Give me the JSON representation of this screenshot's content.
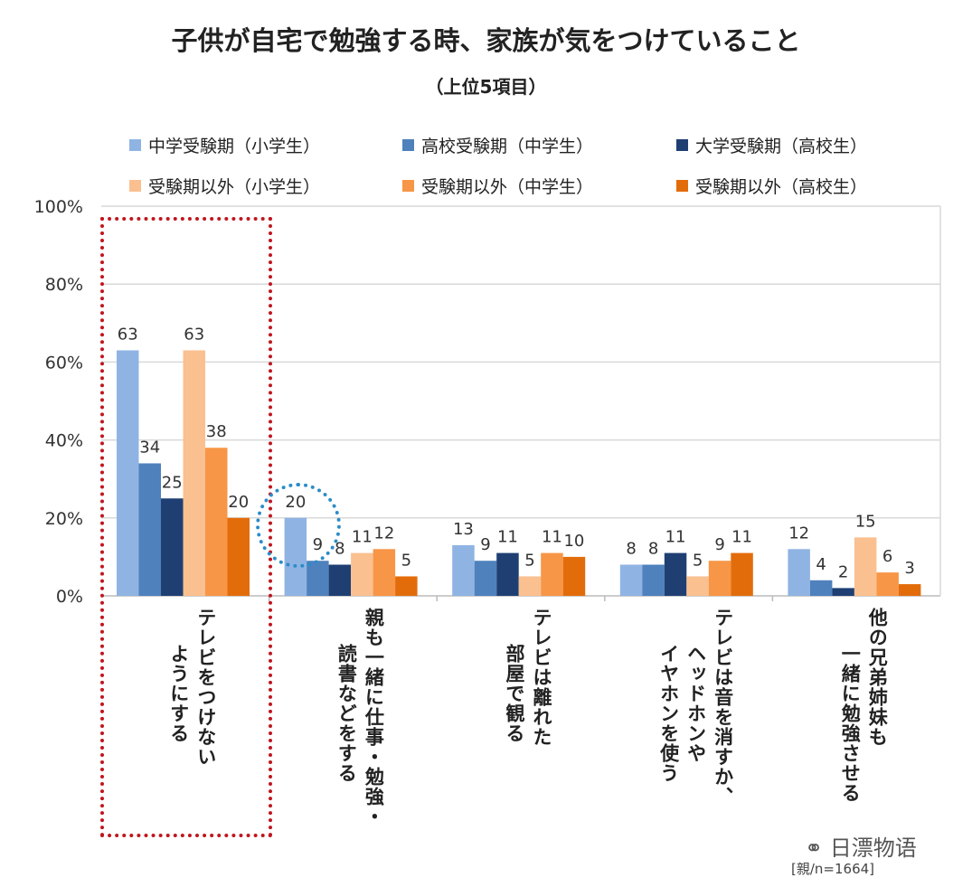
{
  "chart_data": {
    "type": "bar",
    "title": "子供が自宅で勉強する時、家族が気をつけていること",
    "subtitle": "（上位5項目）",
    "categories": [
      [
        "テレビをつけない",
        "ようにする"
      ],
      [
        "親も一緒に仕事・勉強・",
        "読書などをする"
      ],
      [
        "テレビは離れた",
        "部屋で観る"
      ],
      [
        "テレビは音を消すか、",
        "ヘッドホンや",
        "イヤホンを使う"
      ],
      [
        "他の兄弟姉妹も",
        "一緒に勉強させる"
      ]
    ],
    "series": [
      {
        "name": "中学受験期（小学生）",
        "color": "#8fb4e3",
        "values": [
          63,
          20,
          13,
          8,
          12
        ]
      },
      {
        "name": "高校受験期（中学生）",
        "color": "#4f81bd",
        "values": [
          34,
          9,
          9,
          8,
          4
        ]
      },
      {
        "name": "大学受験期（高校生）",
        "color": "#1f3f73",
        "values": [
          25,
          8,
          11,
          11,
          2
        ]
      },
      {
        "name": "受験期以外（小学生）",
        "color": "#fac090",
        "values": [
          63,
          11,
          5,
          5,
          15
        ]
      },
      {
        "name": "受験期以外（中学生）",
        "color": "#f79646",
        "values": [
          38,
          12,
          11,
          9,
          6
        ]
      },
      {
        "name": "受験期以外（高校生）",
        "color": "#e36c0a",
        "values": [
          20,
          5,
          10,
          11,
          3
        ]
      }
    ],
    "ylim": [
      0,
      100
    ],
    "yticks": [
      "0%",
      "20%",
      "40%",
      "60%",
      "80%",
      "100%"
    ],
    "grid": true,
    "legend_position": "top",
    "note": "[親/n=1664]",
    "watermark": "日漂物语",
    "highlight_colors": {
      "box": "#c0161e",
      "circle": "#2b8cc8"
    }
  }
}
